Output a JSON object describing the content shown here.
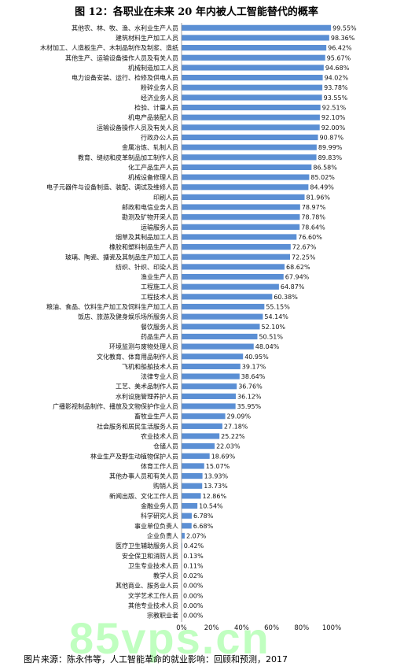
{
  "title": "图 12：各职业在未来 20 年内被人工智能替代的概率",
  "source": "图片来源：陈永伟等，人工智能革命的就业影响：回顾和预测，2017",
  "watermark": "85vps.cn",
  "colors": {
    "bar": "#5b8fd4",
    "label_bg": "#ffffff",
    "axis": "#888888"
  },
  "chart_data": {
    "type": "bar",
    "orientation": "horizontal",
    "title": "图 12：各职业在未来 20 年内被人工智能替代的概率",
    "xlim": [
      0,
      100
    ],
    "x_ticks": [
      "0%",
      "20%",
      "40%",
      "60%",
      "80%",
      "100%"
    ],
    "grid": false,
    "categories": [
      "其他农、林、牧、渔、水利业生产人员",
      "建筑材料生产加工人员",
      "木材加工、人造板生产、木制品制作及制浆、造纸",
      "其他生产、运输设备操作人员及有关人员",
      "机械制造加工人员",
      "电力设备安装、运行、检修及供电人员",
      "粉碎业务人员",
      "经济业务人员",
      "检验、计量人员",
      "机电产品装配人员",
      "运输设备操作人员及有关人员",
      "行政办公人员",
      "金属冶炼、轧制人员",
      "教育、缝纫和皮革制品加工制作人员",
      "化工产品生产人员",
      "机械设备修理人员",
      "电子元器件与设备制造、装配、调试及维修人员",
      "印刷人员",
      "邮政和电信业务人员",
      "勘测及矿物开采人员",
      "运输服务人员",
      "烟草及其制品加工人员",
      "橡胶和塑料制品生产人员",
      "玻璃、陶瓷、搪瓷及其制品生产加工人员",
      "纺织、针织、印染人员",
      "渔业生产人员",
      "工程施工人员",
      "工程技术人员",
      "粮油、食品、饮料生产加工及饲料生产加工人员",
      "饭店、旅游及健身娱乐场所服务人员",
      "餐饮服务人员",
      "药品生产人员",
      "环境监测与废物处理人员",
      "文化教育、体育用品制作人员",
      "飞机和船舶技术人员",
      "法律专业人员",
      "工艺、美术品制作人员",
      "水利设施管理养护人员",
      "广播影视制品制作、播放及文物保护作业人员",
      "畜牧业生产人员",
      "社会服务和居民生活服务人员",
      "农业技术人员",
      "仓储人员",
      "林业生产及野生动植物保护人员",
      "体育工作人员",
      "其他办事人员和有关人员",
      "购销人员",
      "新闻出版、文化工作人员",
      "金融业务人员",
      "科学研究人员",
      "事业单位负责人",
      "企业负责人",
      "医疗卫生辅助服务人员",
      "安全保卫和消防人员",
      "卫生专业技术人员",
      "教学人员",
      "其他商业、服务业人员",
      "文学艺术工作人员",
      "其他专业技术人员",
      "宗教职业者"
    ],
    "values": [
      99.55,
      98.36,
      96.42,
      95.67,
      94.68,
      94.02,
      93.78,
      93.55,
      92.51,
      92.1,
      92.0,
      90.87,
      89.99,
      89.83,
      86.58,
      85.02,
      84.49,
      81.96,
      78.97,
      78.78,
      78.64,
      76.6,
      72.67,
      72.25,
      68.62,
      67.94,
      64.87,
      60.38,
      55.15,
      54.14,
      52.1,
      50.51,
      48.04,
      40.95,
      39.17,
      38.64,
      36.76,
      36.12,
      35.95,
      29.09,
      27.18,
      25.22,
      22.03,
      18.69,
      15.07,
      13.93,
      13.73,
      12.86,
      10.54,
      6.78,
      6.68,
      2.07,
      0.42,
      0.13,
      0.11,
      0.02,
      0.0,
      0.0,
      0.0,
      0.0
    ],
    "value_labels": [
      "99.55%",
      "98.36%",
      "96.42%",
      "95.67%",
      "94.68%",
      "94.02%",
      "93.78%",
      "93.55%",
      "92.51%",
      "92.10%",
      "92.00%",
      "90.87%",
      "89.99%",
      "89.83%",
      "86.58%",
      "85.02%",
      "84.49%",
      "81.96%",
      "78.97%",
      "78.78%",
      "78.64%",
      "76.60%",
      "72.67%",
      "72.25%",
      "68.62%",
      "67.94%",
      "64.87%",
      "60.38%",
      "55.15%",
      "54.14%",
      "52.10%",
      "50.51%",
      "48.04%",
      "40.95%",
      "39.17%",
      "38.64%",
      "36.76%",
      "36.12%",
      "35.95%",
      "29.09%",
      "27.18%",
      "25.22%",
      "22.03%",
      "18.69%",
      "15.07%",
      "13.93%",
      "13.73%",
      "12.86%",
      "10.54%",
      "6.78%",
      "6.68%",
      "2.07%",
      "0.42%",
      "0.13%",
      "0.11%",
      "0.02%",
      "0.00%",
      "0.00%",
      "0.00%",
      "0.00%"
    ]
  }
}
